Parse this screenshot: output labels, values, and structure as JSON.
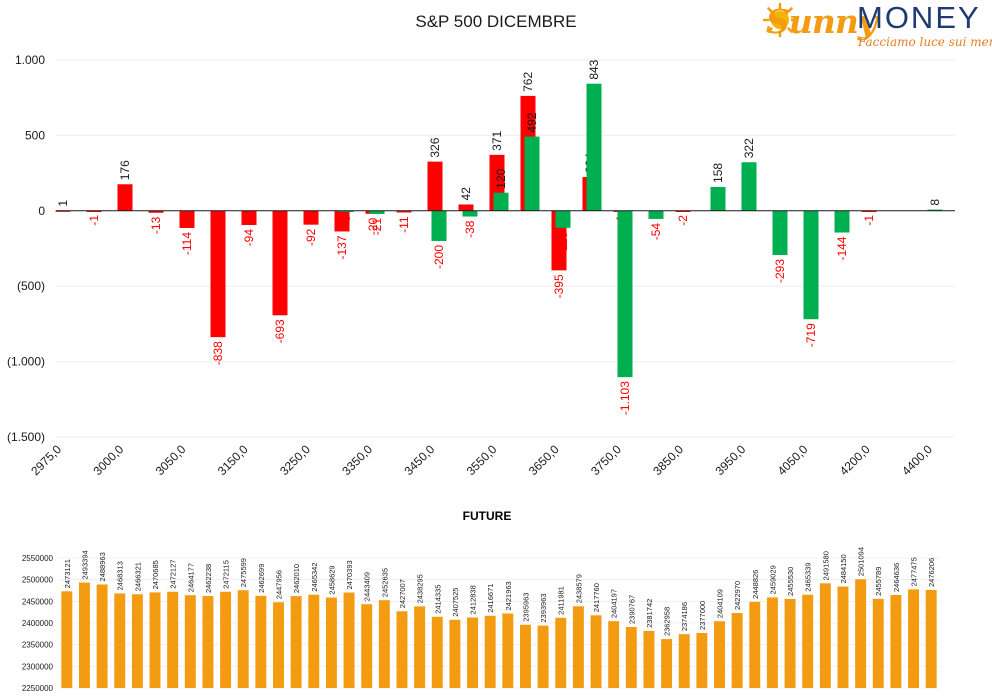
{
  "header": {
    "title": "S&P 500 DICEMBRE",
    "logo": {
      "brand_part1": "Sunny",
      "brand_part2": "MONEY",
      "tagline": "Facciamo luce sui mercati"
    }
  },
  "colors": {
    "positive": "#00b050",
    "negative": "#ff0000",
    "future_bar": "#f39c12",
    "neg_label": "#ff0000"
  },
  "chart_data": [
    {
      "type": "bar",
      "title": "S&P 500 DICEMBRE",
      "ylim": [
        -1500,
        1000
      ],
      "y_ticks": [
        {
          "value": 1000,
          "label": "1.000"
        },
        {
          "value": 500,
          "label": "500"
        },
        {
          "value": 0,
          "label": "0"
        },
        {
          "value": -500,
          "label": "(500)"
        },
        {
          "value": -1000,
          "label": "(1.000)"
        },
        {
          "value": -1500,
          "label": "(1.500)"
        }
      ],
      "x_tick_labels": [
        "2975,0",
        "3000,0",
        "3050,0",
        "3150,0",
        "3250,0",
        "3350,0",
        "3450,0",
        "3550,0",
        "3650,0",
        "3750,0",
        "3850,0",
        "3950,0",
        "4050,0",
        "4200,0",
        "4400,0"
      ],
      "series": [
        {
          "color": "#ff0000",
          "values": [
            1,
            -1,
            176,
            -13,
            -114,
            -838,
            -94,
            -693,
            -92,
            -137,
            -20,
            -11,
            326,
            42,
            371,
            762,
            -395,
            224,
            -1,
            -2,
            -1,
            -1,
            -1,
            -1,
            -1,
            -1,
            -1,
            -1,
            -1
          ],
          "labels": [
            "1",
            "-1",
            "176",
            "-13",
            "-114",
            "-838",
            "-94",
            "-693",
            "-92",
            "-137",
            "-20",
            "-11",
            "326",
            "42",
            "371",
            "762",
            "-395",
            "224",
            "-1",
            "-2",
            "",
            "",
            "",
            "",
            "",
            "",
            "",
            "",
            "-1"
          ],
          "slots": [
            0,
            1,
            2,
            3,
            4,
            5,
            6,
            7,
            8,
            9,
            10,
            11,
            12,
            13,
            14,
            15,
            16,
            17,
            18,
            20,
            99,
            99,
            99,
            99,
            99,
            99,
            99,
            99,
            26
          ]
        },
        {
          "color": "#00b050",
          "values": [
            -3,
            -21,
            -200,
            -38,
            120,
            492,
            -113,
            843,
            -1103,
            -54,
            158,
            322,
            -293,
            -719,
            -144,
            8
          ],
          "labels": [
            "-3",
            "-21",
            "-200",
            "-38",
            "120",
            "492",
            "-113",
            "843",
            "-1.103",
            "-54",
            "158",
            "322",
            "-293",
            "-719",
            "-144",
            "8"
          ],
          "slots": [
            9,
            10,
            12,
            13,
            14,
            15,
            16,
            17,
            18,
            19,
            21,
            22,
            23,
            24,
            25,
            28
          ]
        }
      ]
    },
    {
      "type": "bar",
      "title": "FUTURE",
      "ylim": [
        2250000,
        2550000
      ],
      "y_ticks": [
        2550000,
        2500000,
        2450000,
        2400000,
        2350000,
        2300000,
        2250000
      ],
      "values": [
        2473121,
        2493394,
        2488963,
        2468313,
        2466321,
        2470685,
        2472127,
        2464177,
        2462238,
        2472115,
        2475599,
        2462699,
        2447956,
        2462010,
        2465342,
        2458629,
        2470393,
        2443409,
        2452635,
        2427007,
        2438295,
        2414335,
        2407525,
        2412838,
        2416671,
        2421963,
        2395963,
        2393963,
        2411981,
        2438579,
        2417760,
        2404197,
        2390767,
        2381742,
        2362958,
        2374186,
        2377000,
        2404109,
        2422970,
        2448826,
        2459029,
        2455530,
        2465339,
        2491580,
        2484150,
        2501094,
        2455789,
        2464636,
        2477475,
        2476206
      ],
      "color": "#f39c12"
    }
  ]
}
